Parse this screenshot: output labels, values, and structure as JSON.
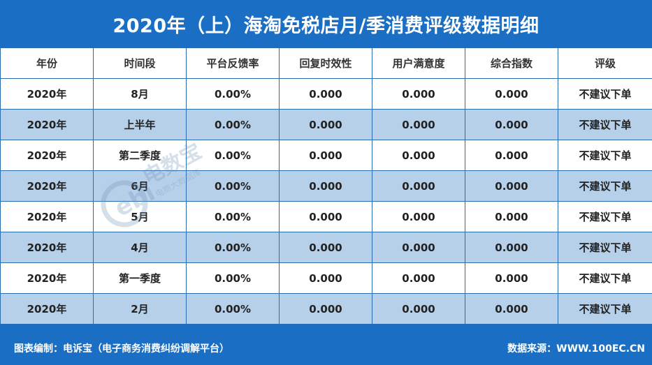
{
  "title": "2020年（上）海淘免税店月/季消费评级数据明细",
  "table": {
    "headers": [
      "年份",
      "时间段",
      "平台反馈率",
      "回复时效性",
      "用户满意度",
      "综合指数",
      "评级"
    ],
    "rows": [
      [
        "2020年",
        "8月",
        "0.00%",
        "0.000",
        "0.000",
        "0.000",
        "不建议下单"
      ],
      [
        "2020年",
        "上半年",
        "0.00%",
        "0.000",
        "0.000",
        "0.000",
        "不建议下单"
      ],
      [
        "2020年",
        "第二季度",
        "0.00%",
        "0.000",
        "0.000",
        "0.000",
        "不建议下单"
      ],
      [
        "2020年",
        "6月",
        "0.00%",
        "0.000",
        "0.000",
        "0.000",
        "不建议下单"
      ],
      [
        "2020年",
        "5月",
        "0.00%",
        "0.000",
        "0.000",
        "0.000",
        "不建议下单"
      ],
      [
        "2020年",
        "4月",
        "0.00%",
        "0.000",
        "0.000",
        "0.000",
        "不建议下单"
      ],
      [
        "2020年",
        "第一季度",
        "0.00%",
        "0.000",
        "0.000",
        "0.000",
        "不建议下单"
      ],
      [
        "2020年",
        "2月",
        "0.00%",
        "0.000",
        "0.000",
        "0.000",
        "不建议下单"
      ]
    ]
  },
  "footer": {
    "left": "图表编制：电诉宝（电子商务消费纠纷调解平台）",
    "right": "数据来源：WWW.100EC.CN"
  },
  "watermark": {
    "logo": "ebi",
    "brand": "电数宝",
    "tagline": "电商大数据库"
  },
  "colors": {
    "header_bg": "#1a6fc4",
    "row_alt": "#b7d0ea",
    "row_white": "#ffffff",
    "border": "#2a6cb0"
  }
}
